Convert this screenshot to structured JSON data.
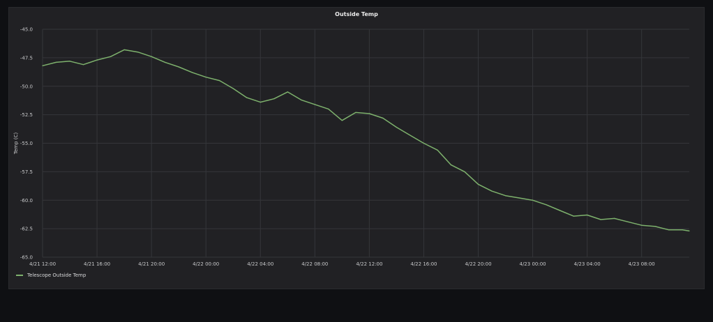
{
  "panel": {
    "title": "Outside Temp"
  },
  "colors": {
    "series": "#7eb26d",
    "grid": "#35363a",
    "text": "#c7c8ca"
  },
  "chart_data": {
    "type": "line",
    "title": "Outside Temp",
    "xlabel": "",
    "ylabel": "Temp (C)",
    "ylim": [
      -65.0,
      -45.0
    ],
    "yticks": [
      "-45.0",
      "-47.5",
      "-50.0",
      "-52.5",
      "-55.0",
      "-57.5",
      "-60.0",
      "-62.5",
      "-65.0"
    ],
    "xticks": [
      "4/21 12:00",
      "4/21 16:00",
      "4/21 20:00",
      "4/22 00:00",
      "4/22 04:00",
      "4/22 08:00",
      "4/22 12:00",
      "4/22 16:00",
      "4/22 20:00",
      "4/23 00:00",
      "4/23 04:00",
      "4/23 08:00"
    ],
    "xlim": [
      "4/21 12:00",
      "4/23 11:30"
    ],
    "grid": true,
    "legend_position": "bottom-left",
    "series": [
      {
        "name": "Telescope Outside Temp",
        "x": [
          "4/21 12:00",
          "4/21 13:00",
          "4/21 14:00",
          "4/21 15:00",
          "4/21 16:00",
          "4/21 17:00",
          "4/21 18:00",
          "4/21 19:00",
          "4/21 20:00",
          "4/21 21:00",
          "4/21 22:00",
          "4/21 23:00",
          "4/22 00:00",
          "4/22 01:00",
          "4/22 02:00",
          "4/22 03:00",
          "4/22 04:00",
          "4/22 05:00",
          "4/22 06:00",
          "4/22 07:00",
          "4/22 08:00",
          "4/22 09:00",
          "4/22 10:00",
          "4/22 11:00",
          "4/22 12:00",
          "4/22 13:00",
          "4/22 14:00",
          "4/22 15:00",
          "4/22 16:00",
          "4/22 17:00",
          "4/22 18:00",
          "4/22 19:00",
          "4/22 20:00",
          "4/22 21:00",
          "4/22 22:00",
          "4/22 23:00",
          "4/23 00:00",
          "4/23 01:00",
          "4/23 02:00",
          "4/23 03:00",
          "4/23 04:00",
          "4/23 05:00",
          "4/23 06:00",
          "4/23 07:00",
          "4/23 08:00",
          "4/23 09:00",
          "4/23 10:00",
          "4/23 11:00",
          "4/23 11:30"
        ],
        "values": [
          -48.2,
          -47.9,
          -47.8,
          -48.1,
          -47.7,
          -47.4,
          -46.8,
          -47.0,
          -47.4,
          -47.9,
          -48.3,
          -48.8,
          -49.2,
          -49.5,
          -50.2,
          -51.0,
          -51.4,
          -51.1,
          -50.5,
          -51.2,
          -51.6,
          -52.0,
          -53.0,
          -52.3,
          -52.4,
          -52.8,
          -53.6,
          -54.3,
          -55.0,
          -55.6,
          -56.9,
          -57.5,
          -58.6,
          -59.2,
          -59.6,
          -59.8,
          -60.0,
          -60.4,
          -60.9,
          -61.4,
          -61.3,
          -61.7,
          -61.6,
          -61.9,
          -62.2,
          -62.3,
          -62.6,
          -62.6,
          -62.7
        ]
      }
    ]
  }
}
